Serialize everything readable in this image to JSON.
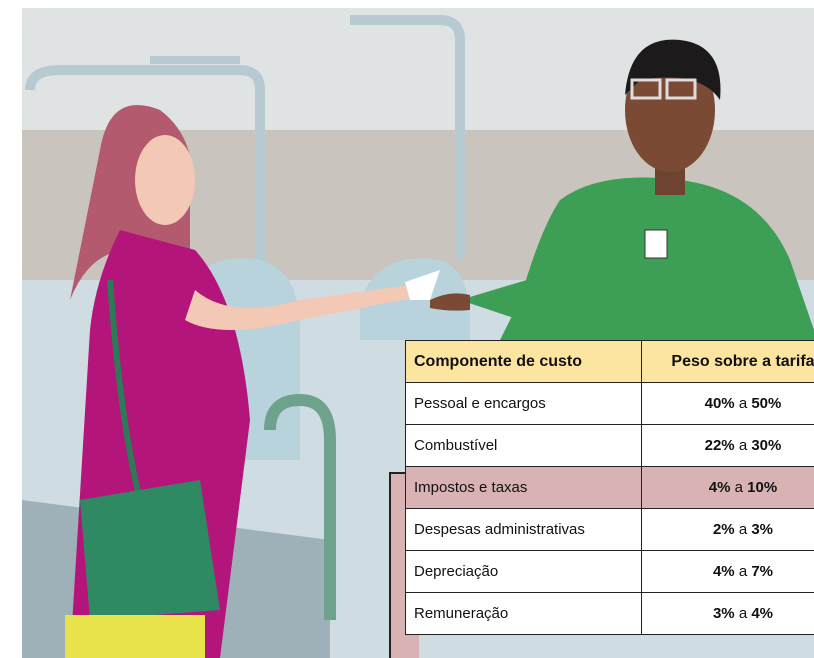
{
  "table": {
    "header": [
      "Componente de custo",
      "Peso sobre a tarifa"
    ],
    "rows": [
      {
        "label": "Pessoal e encargos",
        "value": [
          "40%",
          "a",
          "50%"
        ]
      },
      {
        "label": "Combustível",
        "value": [
          "22%",
          "a",
          "30%"
        ]
      },
      {
        "label": "Impostos e taxas",
        "value": [
          "4%",
          "a",
          "10%"
        ]
      },
      {
        "label": "Despesas administrativas",
        "value": [
          "2%",
          "a",
          "3%"
        ]
      },
      {
        "label": "Depreciação",
        "value": [
          "4%",
          "a",
          "7%"
        ]
      },
      {
        "label": "Remuneração",
        "value": [
          "3%",
          "a",
          "4%"
        ]
      }
    ],
    "highlight_row": 2
  }
}
